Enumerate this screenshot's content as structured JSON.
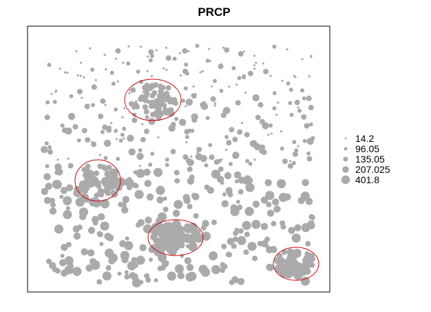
{
  "chart_data": {
    "type": "scatter",
    "title": "PRCP",
    "xlabel": "",
    "ylabel": "",
    "grid": false,
    "legend_position": "right",
    "point_color": "#aaaaaa",
    "highlight_color": "#cc0000",
    "legend": [
      {
        "label": "14.2",
        "value": 14.2
      },
      {
        "label": "96.05",
        "value": 96.05
      },
      {
        "label": "135.05",
        "value": 135.05
      },
      {
        "label": "207.025",
        "value": 207.025
      },
      {
        "label": "401.8",
        "value": 401.8
      }
    ]
  }
}
